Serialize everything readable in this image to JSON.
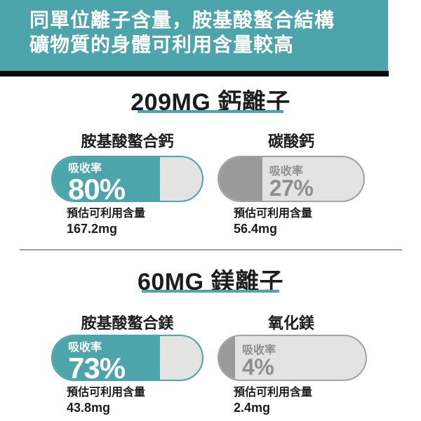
{
  "banner": {
    "line1": "同單位離子含量，胺基酸螯合結構",
    "line2": "礦物質的身體可利用含量較高"
  },
  "colors": {
    "teal": "#4BA5AA",
    "banner_shadow": "#0B0B0B",
    "pill_track": "#E3E3E2",
    "gray_fill": "#9A9A9A",
    "gray_text": "#8E8E8E",
    "dark_text": "#1C1C1E",
    "divider": "#9E9E9E"
  },
  "sections": [
    {
      "title": "209MG 鈣離子",
      "items": [
        {
          "name": "胺基酸螯合鈣",
          "rate_label": "吸收率",
          "rate": "80%",
          "fill_percent": 72,
          "amount_label": "預估可利用含量",
          "amount": "167.2mg"
        },
        {
          "name": "碳酸鈣",
          "rate_label": "吸收率",
          "rate": "27%",
          "fill_percent": 30,
          "amount_label": "預估可利用含量",
          "amount": "56.4mg"
        }
      ]
    },
    {
      "title": "60MG 鎂離子",
      "items": [
        {
          "name": "胺基酸螯合鎂",
          "rate_label": "吸收率",
          "rate": "73%",
          "fill_percent": 72,
          "amount_label": "預估可利用含量",
          "amount": "43.8mg"
        },
        {
          "name": "氧化鎂",
          "rate_label": "吸收率",
          "rate": "4%",
          "fill_percent": 11,
          "amount_label": "預估可利用含量",
          "amount": "2.4mg"
        }
      ]
    }
  ],
  "chart_data": {
    "type": "bar",
    "title": "同單位離子含量，胺基酸螯合結構礦物質的身體可利用含量較高",
    "unit": "%",
    "groups": [
      {
        "group_title": "209MG 鈣離子",
        "categories": [
          "胺基酸螯合鈣",
          "碳酸鈣"
        ],
        "absorption_percent": [
          80,
          27
        ],
        "available_amount_mg": [
          167.2,
          56.4
        ]
      },
      {
        "group_title": "60MG 鎂離子",
        "categories": [
          "胺基酸螯合鎂",
          "氧化鎂"
        ],
        "absorption_percent": [
          73,
          4
        ],
        "available_amount_mg": [
          43.8,
          2.4
        ]
      }
    ],
    "legend_position": "none",
    "grid": false
  }
}
